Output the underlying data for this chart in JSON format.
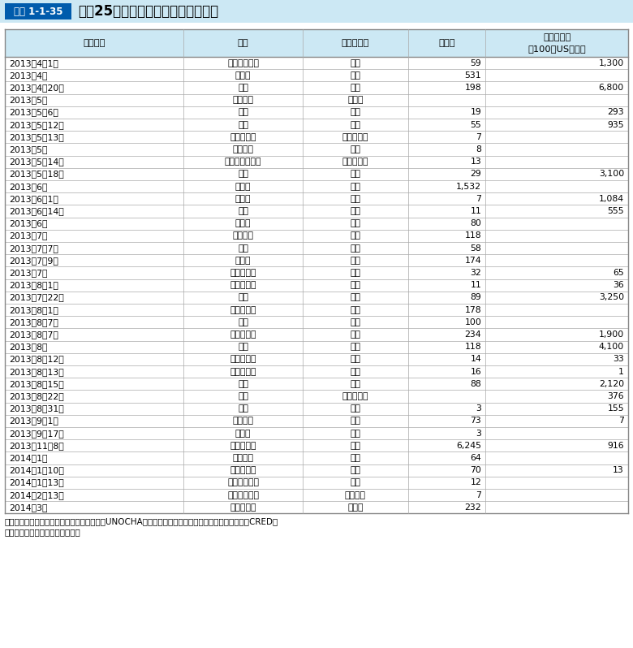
{
  "title_box_label": "図表 1-1-35",
  "title_text": "平成25年度に起こった主な自然災害",
  "headers": [
    "発生時期",
    "国名",
    "災害の種類",
    "死者数",
    "直接被害額\n（100万USドル）"
  ],
  "rows": [
    [
      "2013年4月1日",
      "アルゼンチン",
      "洪水",
      "59",
      "1,300"
    ],
    [
      "2013年4月",
      "インド",
      "熱波",
      "531",
      ""
    ],
    [
      "2013年4月20日",
      "中国",
      "地震",
      "198",
      "6,800"
    ],
    [
      "2013年5月",
      "ナミビア",
      "干ばつ",
      "",
      ""
    ],
    [
      "2013年5月6日",
      "中国",
      "洪水",
      "19",
      "293"
    ],
    [
      "2013年5月12日",
      "中国",
      "洪水",
      "55",
      "935"
    ],
    [
      "2013年5月13日",
      "スリランカ",
      "サイクロン",
      "7",
      ""
    ],
    [
      "2013年5月",
      "セネガル",
      "洪水",
      "8",
      ""
    ],
    [
      "2013年5月14日",
      "バングラデシュ",
      "サイクロン",
      "13",
      ""
    ],
    [
      "2013年5月18日",
      "米国",
      "竜巻",
      "29",
      "3,100"
    ],
    [
      "2013年6月",
      "インド",
      "洪水",
      "1,532",
      ""
    ],
    [
      "2013年6月1日",
      "チェコ",
      "洪水",
      "7",
      "1,084"
    ],
    [
      "2013年6月14日",
      "中国",
      "洪水",
      "11",
      "555"
    ],
    [
      "2013年6月",
      "インド",
      "洪水",
      "80",
      ""
    ],
    [
      "2013年7月",
      "ネパール",
      "洪水",
      "118",
      ""
    ],
    [
      "2013年7月7日",
      "中国",
      "洪水",
      "58",
      ""
    ],
    [
      "2013年7月9日",
      "インド",
      "洪水",
      "174",
      ""
    ],
    [
      "2013年7月",
      "ニジェール",
      "洪水",
      "32",
      "65"
    ],
    [
      "2013年8月1日",
      "フィリピン",
      "洪水",
      "11",
      "36"
    ],
    [
      "2013年7月22日",
      "中国",
      "地震",
      "89",
      "3,250"
    ],
    [
      "2013年8月1日",
      "パキスタン",
      "洪水",
      "178",
      ""
    ],
    [
      "2013年8月7日",
      "中国",
      "洪水",
      "100",
      ""
    ],
    [
      "2013年8月7日",
      "パキスタン",
      "洪水",
      "234",
      "1,900"
    ],
    [
      "2013年8月",
      "中国",
      "洪水",
      "118",
      "4,100"
    ],
    [
      "2013年8月12日",
      "フィリピン",
      "台風",
      "14",
      "33"
    ],
    [
      "2013年8月13日",
      "フィリピン",
      "洪水",
      "16",
      "1"
    ],
    [
      "2013年8月15日",
      "中国",
      "台風",
      "88",
      "2,120"
    ],
    [
      "2013年8月22日",
      "中国",
      "熱帯性暴風",
      "",
      "376"
    ],
    [
      "2013年8月31日",
      "中国",
      "地震",
      "3",
      "155"
    ],
    [
      "2013年9月1日",
      "スーダン",
      "洪水",
      "73",
      "7"
    ],
    [
      "2013年9月17日",
      "ラオス",
      "洪水",
      "3",
      ""
    ],
    [
      "2013年11月8日",
      "フィリピン",
      "台風",
      "6,245",
      "916"
    ],
    [
      "2014年1月",
      "ボリビア",
      "洪水",
      "64",
      ""
    ],
    [
      "2014年1月10日",
      "フィリピン",
      "洪水",
      "70",
      "13"
    ],
    [
      "2014年1月13日",
      "インドネシア",
      "洪水",
      "12",
      ""
    ],
    [
      "2014年2月13日",
      "インドネシア",
      "火山噴火",
      "7",
      ""
    ],
    [
      "2014年3月",
      "パキスタン",
      "干ばつ",
      "232",
      ""
    ]
  ],
  "footer_line1": "出典：各国政府、国連人道問題調整事務所（UNOCHA）、ルーベンカトリック大学災害疫学研究所（CRED）",
  "footer_line2": "　　　資料等をもとに内閣府作成",
  "header_bg": "#cce8f4",
  "border_color_outer": "#888888",
  "border_color_inner": "#aaaaaa",
  "title_bg": "#005bac",
  "title_bar_bg": "#cce8f4",
  "col_props": [
    0.258,
    0.172,
    0.152,
    0.112,
    0.206
  ]
}
